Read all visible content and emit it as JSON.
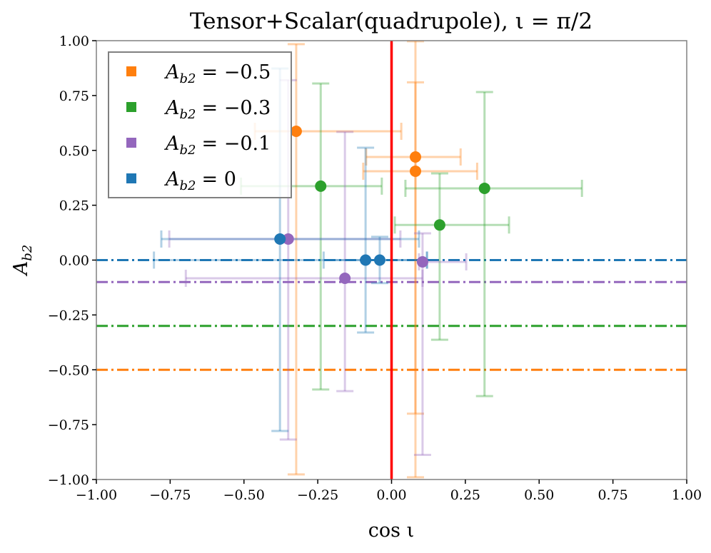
{
  "chart_data": {
    "type": "scatter",
    "title": "Tensor+Scalar(quadrupole), ι = π/2",
    "xlabel": "cos ι",
    "ylabel": "A_b2",
    "ylabel_main": "A",
    "ylabel_sub": "b2",
    "xlim": [
      -1.0,
      1.0
    ],
    "ylim": [
      -1.0,
      1.0
    ],
    "xticks": [
      "−1.00",
      "−0.75",
      "−0.50",
      "−0.25",
      "0.00",
      "0.25",
      "0.50",
      "0.75",
      "1.00"
    ],
    "yticks": [
      "−1.00",
      "−0.75",
      "−0.50",
      "−0.25",
      "0.00",
      "0.25",
      "0.50",
      "0.75",
      "1.00"
    ],
    "xtick_values": [
      -1,
      -0.75,
      -0.5,
      -0.25,
      0,
      0.25,
      0.5,
      0.75,
      1
    ],
    "ytick_values": [
      -1,
      -0.75,
      -0.5,
      -0.25,
      0,
      0.25,
      0.5,
      0.75,
      1
    ],
    "grid": false,
    "legend_placement": "top-left",
    "vertical_line": {
      "x": 0,
      "color": "#ff0000"
    },
    "series": [
      {
        "name": "A_b2 = −0.5",
        "legend_main": "A",
        "legend_sub": "b2",
        "legend_value": "= −0.5",
        "color": "#ff7f0e",
        "true_value": -0.5,
        "points": [
          {
            "x": -0.323,
            "y": 0.587,
            "xlo": -0.463,
            "xhi": 0.033,
            "ylo": -0.977,
            "yhi": 0.984
          },
          {
            "x": 0.081,
            "y": 0.47,
            "xlo": -0.086,
            "xhi": 0.234,
            "ylo": -0.7,
            "yhi": 0.997
          },
          {
            "x": 0.081,
            "y": 0.405,
            "xlo": -0.096,
            "xhi": 0.29,
            "ylo": -0.99,
            "yhi": 0.81
          }
        ]
      },
      {
        "name": "A_b2 = −0.3",
        "legend_main": "A",
        "legend_sub": "b2",
        "legend_value": "= −0.3",
        "color": "#2ca02c",
        "true_value": -0.3,
        "points": [
          {
            "x": -0.24,
            "y": 0.337,
            "xlo": -0.51,
            "xhi": -0.033,
            "ylo": -0.59,
            "yhi": 0.805
          },
          {
            "x": 0.315,
            "y": 0.327,
            "xlo": 0.047,
            "xhi": 0.645,
            "ylo": -0.62,
            "yhi": 0.766
          },
          {
            "x": 0.163,
            "y": 0.16,
            "xlo": 0.011,
            "xhi": 0.398,
            "ylo": -0.363,
            "yhi": 0.395
          }
        ]
      },
      {
        "name": "A_b2 = −0.1",
        "legend_main": "A",
        "legend_sub": "b2",
        "legend_value": "= −0.1",
        "color": "#9467bd",
        "true_value": -0.1,
        "points": [
          {
            "x": -0.35,
            "y": 0.096,
            "xlo": -0.753,
            "xhi": 0.03,
            "ylo": -0.818,
            "yhi": 0.82
          },
          {
            "x": -0.158,
            "y": -0.083,
            "xlo": -0.697,
            "xhi": 0.105,
            "ylo": -0.597,
            "yhi": 0.584
          },
          {
            "x": 0.105,
            "y": -0.008,
            "xlo": 0.093,
            "xhi": 0.253,
            "ylo": -0.888,
            "yhi": 0.122
          }
        ]
      },
      {
        "name": "A_b2 = 0",
        "legend_main": "A",
        "legend_sub": "b2",
        "legend_value": "= 0",
        "color": "#1f77b4",
        "true_value": 0,
        "points": [
          {
            "x": -0.378,
            "y": 0.096,
            "xlo": -0.78,
            "xhi": 0.093,
            "ylo": -0.779,
            "yhi": 0.873
          },
          {
            "x": -0.088,
            "y": 0.0,
            "xlo": -0.805,
            "xhi": 0.12,
            "ylo": -0.33,
            "yhi": 0.512
          },
          {
            "x": -0.04,
            "y": 0.0,
            "xlo": -0.23,
            "xhi": 0.12,
            "ylo": -0.105,
            "yhi": 0.106
          }
        ]
      }
    ]
  }
}
